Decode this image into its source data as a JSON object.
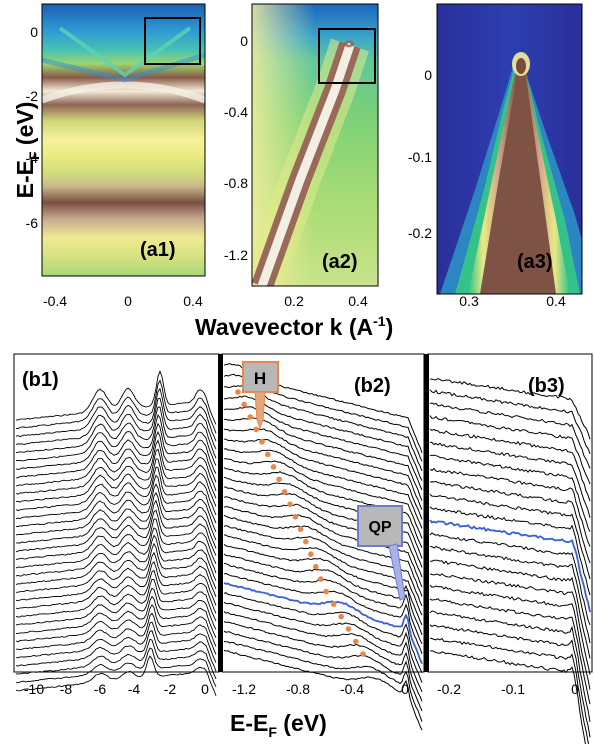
{
  "figure": {
    "y_axis_label_top": "E-E",
    "y_axis_label_top_sub": "F",
    "y_axis_label_top_unit": " (eV)",
    "x_axis_label_top": "Wavevector k (A",
    "x_axis_label_top_sup": "-1",
    "x_axis_label_top_close": ")",
    "x_axis_label_bottom": "E-E",
    "x_axis_label_bottom_sub": "F",
    "x_axis_label_bottom_unit": " (eV)"
  },
  "panels": {
    "a1": {
      "label": "(a1)",
      "y_ticks": [
        "0",
        "-2",
        "-4",
        "-6"
      ],
      "x_ticks": [
        "-0.4",
        "0",
        "0.4"
      ]
    },
    "a2": {
      "label": "(a2)",
      "y_ticks": [
        "0",
        "-0.4",
        "-0.8",
        "-1.2"
      ],
      "x_ticks": [
        "0.2",
        "0.4"
      ]
    },
    "a3": {
      "label": "(a3)",
      "y_ticks": [
        "0",
        "-0.1",
        "-0.2"
      ],
      "x_ticks": [
        "0.3",
        "0.4"
      ]
    },
    "b1": {
      "label": "(b1)",
      "x_ticks": [
        "-10",
        "-8",
        "-6",
        "-4",
        "-2",
        "0"
      ]
    },
    "b2": {
      "label": "(b2)",
      "x_ticks": [
        "-1.2",
        "-0.8",
        "-0.4",
        "0"
      ],
      "annotation_h": "H",
      "annotation_qp": "QP"
    },
    "b3": {
      "label": "(b3)",
      "x_ticks": [
        "-0.2",
        "-0.1",
        "0"
      ]
    }
  },
  "colors": {
    "highlight_curve": "#3a5fd6",
    "h_dots": "#e8874a",
    "band_dark": "#7a4a3a",
    "band_light": "#f4ee9a"
  }
}
